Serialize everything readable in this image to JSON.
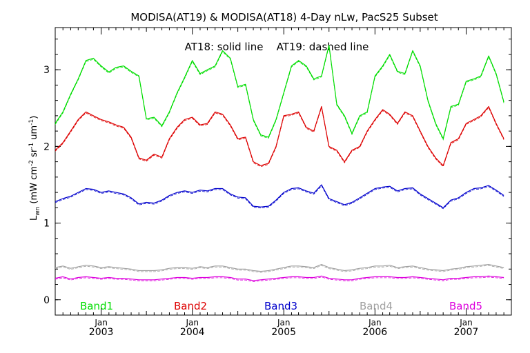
{
  "chart_data": {
    "type": "line",
    "title": "MODISA(AT19) & MODISA(AT18) 4-Day nLw, PacS25 Subset",
    "annotation": "AT18: solid line    AT19: dashed line",
    "ylabel": {
      "main": "L",
      "sub": "wn",
      "units_open": " (mW cm",
      "sup1": "-2",
      "mid1": " sr",
      "sup2": "-1",
      "mid2": " um",
      "sup3": "-1",
      "units_close": ")"
    },
    "xlabel": "",
    "x_axis": {
      "type": "date",
      "range": [
        "2002-07-01",
        "2007-07-01"
      ]
    },
    "ylim": [
      -0.2,
      3.55
    ],
    "y_ticks": [
      {
        "value": 0,
        "label": "0"
      },
      {
        "value": 1,
        "label": "1"
      },
      {
        "value": 2,
        "label": "2"
      },
      {
        "value": 3,
        "label": "3"
      }
    ],
    "x_ticks": [
      {
        "date": "2003-01-01",
        "month": "Jan",
        "year": "2003"
      },
      {
        "date": "2004-01-01",
        "month": "Jan",
        "year": "2004"
      },
      {
        "date": "2005-01-01",
        "month": "Jan",
        "year": "2005"
      },
      {
        "date": "2006-01-01",
        "month": "Jan",
        "year": "2006"
      },
      {
        "date": "2007-01-01",
        "month": "Jan",
        "year": "2007"
      }
    ],
    "grid": false,
    "legend_placement": "bottom-inside",
    "x": [
      "2002-07-01",
      "2002-08-01",
      "2002-09-01",
      "2002-10-01",
      "2002-11-01",
      "2002-12-01",
      "2003-01-01",
      "2003-02-01",
      "2003-03-01",
      "2003-04-01",
      "2003-05-01",
      "2003-06-01",
      "2003-07-01",
      "2003-08-01",
      "2003-09-01",
      "2003-10-01",
      "2003-11-01",
      "2003-12-01",
      "2004-01-01",
      "2004-02-01",
      "2004-03-01",
      "2004-04-01",
      "2004-05-01",
      "2004-06-01",
      "2004-07-01",
      "2004-08-01",
      "2004-09-01",
      "2004-10-01",
      "2004-11-01",
      "2004-12-01",
      "2005-01-01",
      "2005-02-01",
      "2005-03-01",
      "2005-04-01",
      "2005-05-01",
      "2005-06-01",
      "2005-07-01",
      "2005-08-01",
      "2005-09-01",
      "2005-10-01",
      "2005-11-01",
      "2005-12-01",
      "2006-01-01",
      "2006-02-01",
      "2006-03-01",
      "2006-04-01",
      "2006-05-01",
      "2006-06-01",
      "2006-07-01",
      "2006-08-01",
      "2006-09-01",
      "2006-10-01",
      "2006-11-01",
      "2006-12-01",
      "2007-01-01",
      "2007-02-01",
      "2007-03-01",
      "2007-04-01",
      "2007-05-01",
      "2007-06-01"
    ],
    "series": [
      {
        "name": "Band1",
        "color": "#00dd00",
        "values": [
          2.3,
          2.45,
          2.68,
          2.88,
          3.12,
          3.15,
          3.05,
          2.97,
          3.03,
          3.05,
          2.98,
          2.92,
          2.36,
          2.38,
          2.27,
          2.45,
          2.7,
          2.9,
          3.12,
          2.95,
          3.0,
          3.05,
          3.25,
          3.15,
          2.78,
          2.81,
          2.35,
          2.15,
          2.12,
          2.35,
          2.7,
          3.05,
          3.12,
          3.05,
          2.88,
          2.92,
          3.32,
          2.55,
          2.4,
          2.17,
          2.4,
          2.45,
          2.92,
          3.05,
          3.2,
          2.98,
          2.95,
          3.25,
          3.05,
          2.6,
          2.3,
          2.1,
          2.52,
          2.55,
          2.85,
          2.88,
          2.92,
          3.18,
          2.95,
          2.58
        ]
      },
      {
        "name": "Band2",
        "color": "#dd0000",
        "values": [
          1.95,
          2.05,
          2.2,
          2.35,
          2.45,
          2.4,
          2.35,
          2.32,
          2.28,
          2.25,
          2.12,
          1.85,
          1.82,
          1.9,
          1.86,
          2.1,
          2.25,
          2.35,
          2.38,
          2.28,
          2.3,
          2.45,
          2.42,
          2.28,
          2.1,
          2.12,
          1.8,
          1.75,
          1.78,
          2.0,
          2.4,
          2.42,
          2.45,
          2.25,
          2.2,
          2.52,
          2.0,
          1.95,
          1.8,
          1.95,
          2.0,
          2.2,
          2.35,
          2.48,
          2.42,
          2.3,
          2.45,
          2.4,
          2.2,
          2.0,
          1.85,
          1.75,
          2.05,
          2.1,
          2.3,
          2.35,
          2.4,
          2.52,
          2.3,
          2.1
        ]
      },
      {
        "name": "Band3",
        "color": "#0000cc",
        "values": [
          1.28,
          1.32,
          1.35,
          1.4,
          1.45,
          1.44,
          1.4,
          1.42,
          1.4,
          1.38,
          1.33,
          1.25,
          1.27,
          1.26,
          1.3,
          1.36,
          1.4,
          1.42,
          1.4,
          1.43,
          1.42,
          1.45,
          1.45,
          1.38,
          1.34,
          1.33,
          1.22,
          1.21,
          1.22,
          1.3,
          1.4,
          1.45,
          1.46,
          1.42,
          1.39,
          1.5,
          1.32,
          1.28,
          1.24,
          1.27,
          1.33,
          1.39,
          1.45,
          1.47,
          1.48,
          1.42,
          1.45,
          1.46,
          1.38,
          1.32,
          1.26,
          1.2,
          1.3,
          1.33,
          1.4,
          1.45,
          1.46,
          1.49,
          1.43,
          1.36
        ]
      },
      {
        "name": "Band4",
        "color": "#a0a0a0",
        "values": [
          0.42,
          0.44,
          0.41,
          0.43,
          0.45,
          0.44,
          0.42,
          0.43,
          0.42,
          0.41,
          0.4,
          0.38,
          0.38,
          0.38,
          0.39,
          0.41,
          0.42,
          0.42,
          0.41,
          0.43,
          0.42,
          0.44,
          0.44,
          0.42,
          0.4,
          0.4,
          0.38,
          0.37,
          0.38,
          0.4,
          0.42,
          0.44,
          0.44,
          0.43,
          0.42,
          0.46,
          0.42,
          0.4,
          0.38,
          0.39,
          0.41,
          0.42,
          0.44,
          0.44,
          0.45,
          0.42,
          0.43,
          0.44,
          0.42,
          0.4,
          0.39,
          0.38,
          0.4,
          0.41,
          0.43,
          0.44,
          0.45,
          0.46,
          0.44,
          0.42
        ]
      },
      {
        "name": "Band5",
        "color": "#dd00dd",
        "values": [
          0.28,
          0.3,
          0.27,
          0.29,
          0.3,
          0.29,
          0.28,
          0.29,
          0.28,
          0.28,
          0.27,
          0.26,
          0.26,
          0.26,
          0.27,
          0.28,
          0.29,
          0.29,
          0.28,
          0.29,
          0.29,
          0.3,
          0.3,
          0.29,
          0.27,
          0.27,
          0.25,
          0.26,
          0.27,
          0.28,
          0.29,
          0.3,
          0.3,
          0.29,
          0.29,
          0.31,
          0.28,
          0.27,
          0.26,
          0.26,
          0.28,
          0.29,
          0.3,
          0.3,
          0.3,
          0.29,
          0.29,
          0.3,
          0.29,
          0.28,
          0.27,
          0.26,
          0.28,
          0.28,
          0.29,
          0.3,
          0.3,
          0.31,
          0.3,
          0.29
        ]
      }
    ]
  }
}
